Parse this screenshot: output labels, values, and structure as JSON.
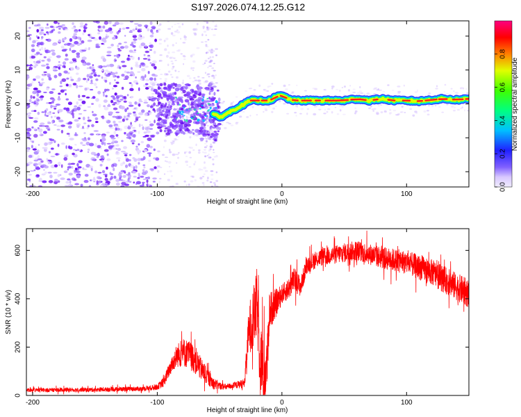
{
  "title": "S197.2026.074.12.25.G12",
  "chart_data": [
    {
      "type": "heatmap",
      "name": "spectrogram",
      "xlabel": "Height of straight line (km)",
      "ylabel": "Frequency (Hz)",
      "xlim": [
        -205,
        150
      ],
      "ylim": [
        -24.5,
        24.5
      ],
      "xticks": [
        -200,
        -100,
        0,
        100
      ],
      "xtick_labels": [
        "-200",
        "-100",
        "0",
        "100"
      ],
      "yticks": [
        -20,
        -10,
        0,
        10,
        20
      ],
      "ytick_labels": [
        "-20",
        "-10",
        "0",
        "10",
        "20"
      ],
      "ridge": {
        "x": [
          -55,
          -50,
          -45,
          -40,
          -35,
          -30,
          -25,
          -20,
          -15,
          -10,
          -5,
          0,
          5,
          10,
          20,
          30,
          40,
          50,
          60,
          70,
          80,
          90,
          100,
          110,
          120,
          130,
          140,
          150
        ],
        "y": [
          -3,
          -4,
          -3,
          -2,
          -1,
          0,
          1,
          1,
          1,
          1,
          2,
          2.5,
          1.5,
          1,
          1,
          1,
          1,
          1,
          1.5,
          1,
          1.5,
          1,
          1,
          0.8,
          1.2,
          1.5,
          1.2,
          1.5
        ]
      },
      "colorbar": {
        "label": "Normalized spectral amplitude",
        "range": [
          0,
          1
        ],
        "ticks": [
          0.0,
          0.2,
          0.4,
          0.6,
          0.8
        ],
        "tick_labels": [
          "0.0",
          "0.2",
          "0.4",
          "0.6",
          "0.8"
        ]
      }
    },
    {
      "type": "line",
      "name": "snr",
      "xlabel": "Height of straight line (km)",
      "ylabel": "SNR (10 * v/v)",
      "xlim": [
        -205,
        150
      ],
      "ylim": [
        0,
        690
      ],
      "xticks": [
        -200,
        -100,
        0,
        100
      ],
      "xtick_labels": [
        "-200",
        "-100",
        "0",
        "100"
      ],
      "yticks": [
        0,
        200,
        400,
        600
      ],
      "ytick_labels": [
        "0",
        "200",
        "400",
        "600"
      ],
      "color": "#ff0000",
      "envelope": {
        "x": [
          -205,
          -150,
          -110,
          -100,
          -95,
          -90,
          -85,
          -80,
          -75,
          -70,
          -65,
          -60,
          -55,
          -50,
          -45,
          -40,
          -35,
          -30,
          -27,
          -25,
          -22,
          -20,
          -18,
          -15,
          -12,
          -10,
          -5,
          0,
          5,
          10,
          15,
          20,
          30,
          40,
          50,
          60,
          70,
          80,
          90,
          100,
          110,
          120,
          130,
          140,
          150
        ],
        "y": [
          22,
          24,
          28,
          35,
          55,
          110,
          160,
          180,
          170,
          150,
          110,
          80,
          50,
          40,
          35,
          40,
          45,
          50,
          250,
          300,
          330,
          380,
          200,
          80,
          120,
          350,
          380,
          420,
          440,
          480,
          450,
          540,
          570,
          580,
          590,
          600,
          585,
          570,
          560,
          550,
          530,
          510,
          480,
          450,
          420
        ]
      },
      "noise_amplitude": {
        "x": [
          -205,
          -110,
          -100,
          -90,
          -80,
          -70,
          -60,
          -50,
          -40,
          -30,
          -25,
          -20,
          -15,
          -10,
          0,
          10,
          20,
          50,
          100,
          150
        ],
        "y": [
          8,
          10,
          12,
          30,
          60,
          60,
          35,
          15,
          12,
          20,
          120,
          150,
          150,
          80,
          40,
          50,
          35,
          40,
          50,
          60
        ]
      }
    }
  ]
}
